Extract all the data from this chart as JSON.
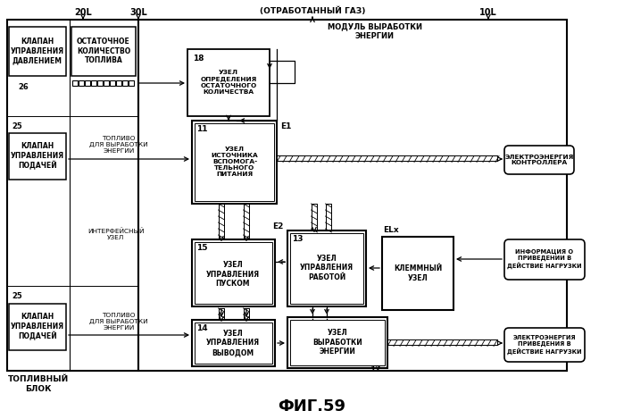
{
  "title": "ФИГ.59",
  "bg": "#ffffff",
  "labels": {
    "20L": "20L",
    "30L": "30L",
    "exhaust": "(ОТРАБОТАННЫЙ ГАЗ)",
    "10L": "10L",
    "pressure_valve": "КЛАПАН\nУПРАВЛЕНИЯ\nДАВЛЕНИЕМ",
    "fuel_remaining": "ОСТАТОЧНОЕ\nКОЛИЧЕСТВО\nТОПЛИВА",
    "node18": "УЗЕЛ\nОПРЕДЕЛЕНИЯ\nОСТАТОЧНОГО\nКОЛИЧЕСТВА",
    "energy_module": "МОДУЛЬ ВЫРАБОТКИ\nЭНЕРГИИ",
    "26": "26",
    "25a": "25",
    "25b": "25",
    "supply_valve1": "КЛАПАН\nУПРАВЛЕНИЯ\nПОДАЧЕЙ",
    "supply_valve2": "КЛАПАН\nУПРАВЛЕНИЯ\nПОДАЧЕЙ",
    "fuel_energy1": "ТОПЛИВО\nДЛЯ ВЫРАБОТКИ\nЭНЕРГИИ",
    "fuel_energy2": "ТОПЛИВО\nДЛЯ ВЫРАБОТКИ\nЭНЕРГИИ",
    "aux_power": "УЗЕЛ\nИСТОЧНИКА\nВСПОМОГА-\nТЕЛЬНОГО\nПИТАНИЯ",
    "E1": "E1",
    "E2": "E2",
    "ELx": "ELx",
    "interface_node": "ИНТЕРФЕЙСНЫЙ\nУЗЕЛ",
    "start_control": "УЗЕЛ\nУПРАВЛЕНИЯ\nПУСКОМ",
    "operation_control": "УЗЕЛ\nУПРАВЛЕНИЯ\nРАБОТОЙ",
    "terminal_node": "КЛЕММНЫЙ\nУЗЕЛ",
    "output_control": "УЗЕЛ\nУПРАВЛЕНИЯ\nВЫВОДОМ",
    "energy_gen": "УЗЕЛ\nВЫРАБОТКИ\nЭНЕРГИИ",
    "fuel_block": "ТОПЛИВНЫЙ\nБЛОК",
    "ctrl_power": "ЭЛЕКТРОЭНЕРГИЯ\nКОНТРОЛЛЕРА",
    "load_info": "ИНФОРМАЦИЯ О\nПРИВЕДЕНИИ В\nДЕЙСТВИЕ НАГРУЗКИ",
    "load_power": "ЭЛЕКТРОЭНЕРГИЯ\nПРИВЕДЕНИЯ В\nДЕЙСТВИЕ НАГРУЗКИ"
  }
}
